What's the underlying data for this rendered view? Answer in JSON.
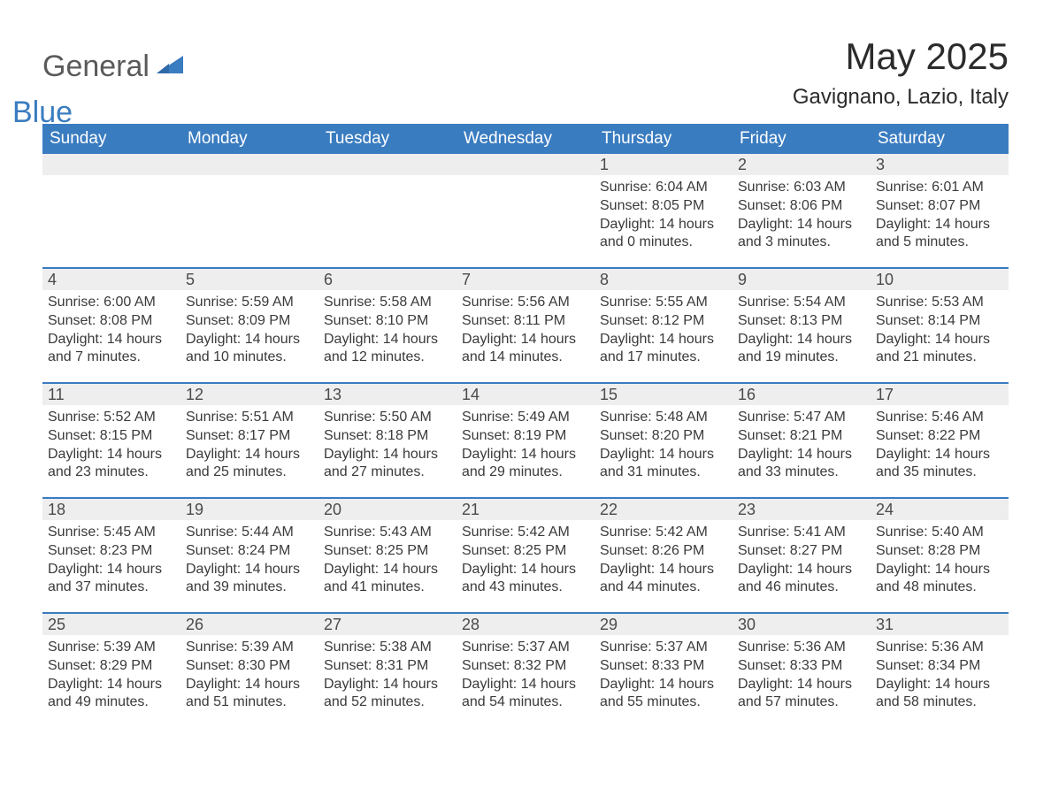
{
  "logo": {
    "text_general": "General",
    "text_blue": "Blue",
    "general_color": "#5a5a5a",
    "blue_color": "#3a7cc0",
    "icon_color": "#3a7cc0"
  },
  "title": "May 2025",
  "location": "Gavignano, Lazio, Italy",
  "colors": {
    "header_bg": "#3a7cc0",
    "header_text": "#ffffff",
    "daynum_bg": "#eeeeee",
    "daynum_text": "#4a4a4a",
    "body_text": "#3a3a3a",
    "week_border": "#3a7cc0",
    "page_bg": "#ffffff"
  },
  "typography": {
    "title_fontsize": 42,
    "location_fontsize": 24,
    "header_fontsize": 19,
    "daynum_fontsize": 18,
    "body_fontsize": 16,
    "logo_fontsize": 34,
    "font_family": "Arial"
  },
  "weekdays": [
    "Sunday",
    "Monday",
    "Tuesday",
    "Wednesday",
    "Thursday",
    "Friday",
    "Saturday"
  ],
  "weeks": [
    [
      null,
      null,
      null,
      null,
      {
        "num": "1",
        "sunrise": "Sunrise: 6:04 AM",
        "sunset": "Sunset: 8:05 PM",
        "daylight1": "Daylight: 14 hours",
        "daylight2": "and 0 minutes."
      },
      {
        "num": "2",
        "sunrise": "Sunrise: 6:03 AM",
        "sunset": "Sunset: 8:06 PM",
        "daylight1": "Daylight: 14 hours",
        "daylight2": "and 3 minutes."
      },
      {
        "num": "3",
        "sunrise": "Sunrise: 6:01 AM",
        "sunset": "Sunset: 8:07 PM",
        "daylight1": "Daylight: 14 hours",
        "daylight2": "and 5 minutes."
      }
    ],
    [
      {
        "num": "4",
        "sunrise": "Sunrise: 6:00 AM",
        "sunset": "Sunset: 8:08 PM",
        "daylight1": "Daylight: 14 hours",
        "daylight2": "and 7 minutes."
      },
      {
        "num": "5",
        "sunrise": "Sunrise: 5:59 AM",
        "sunset": "Sunset: 8:09 PM",
        "daylight1": "Daylight: 14 hours",
        "daylight2": "and 10 minutes."
      },
      {
        "num": "6",
        "sunrise": "Sunrise: 5:58 AM",
        "sunset": "Sunset: 8:10 PM",
        "daylight1": "Daylight: 14 hours",
        "daylight2": "and 12 minutes."
      },
      {
        "num": "7",
        "sunrise": "Sunrise: 5:56 AM",
        "sunset": "Sunset: 8:11 PM",
        "daylight1": "Daylight: 14 hours",
        "daylight2": "and 14 minutes."
      },
      {
        "num": "8",
        "sunrise": "Sunrise: 5:55 AM",
        "sunset": "Sunset: 8:12 PM",
        "daylight1": "Daylight: 14 hours",
        "daylight2": "and 17 minutes."
      },
      {
        "num": "9",
        "sunrise": "Sunrise: 5:54 AM",
        "sunset": "Sunset: 8:13 PM",
        "daylight1": "Daylight: 14 hours",
        "daylight2": "and 19 minutes."
      },
      {
        "num": "10",
        "sunrise": "Sunrise: 5:53 AM",
        "sunset": "Sunset: 8:14 PM",
        "daylight1": "Daylight: 14 hours",
        "daylight2": "and 21 minutes."
      }
    ],
    [
      {
        "num": "11",
        "sunrise": "Sunrise: 5:52 AM",
        "sunset": "Sunset: 8:15 PM",
        "daylight1": "Daylight: 14 hours",
        "daylight2": "and 23 minutes."
      },
      {
        "num": "12",
        "sunrise": "Sunrise: 5:51 AM",
        "sunset": "Sunset: 8:17 PM",
        "daylight1": "Daylight: 14 hours",
        "daylight2": "and 25 minutes."
      },
      {
        "num": "13",
        "sunrise": "Sunrise: 5:50 AM",
        "sunset": "Sunset: 8:18 PM",
        "daylight1": "Daylight: 14 hours",
        "daylight2": "and 27 minutes."
      },
      {
        "num": "14",
        "sunrise": "Sunrise: 5:49 AM",
        "sunset": "Sunset: 8:19 PM",
        "daylight1": "Daylight: 14 hours",
        "daylight2": "and 29 minutes."
      },
      {
        "num": "15",
        "sunrise": "Sunrise: 5:48 AM",
        "sunset": "Sunset: 8:20 PM",
        "daylight1": "Daylight: 14 hours",
        "daylight2": "and 31 minutes."
      },
      {
        "num": "16",
        "sunrise": "Sunrise: 5:47 AM",
        "sunset": "Sunset: 8:21 PM",
        "daylight1": "Daylight: 14 hours",
        "daylight2": "and 33 minutes."
      },
      {
        "num": "17",
        "sunrise": "Sunrise: 5:46 AM",
        "sunset": "Sunset: 8:22 PM",
        "daylight1": "Daylight: 14 hours",
        "daylight2": "and 35 minutes."
      }
    ],
    [
      {
        "num": "18",
        "sunrise": "Sunrise: 5:45 AM",
        "sunset": "Sunset: 8:23 PM",
        "daylight1": "Daylight: 14 hours",
        "daylight2": "and 37 minutes."
      },
      {
        "num": "19",
        "sunrise": "Sunrise: 5:44 AM",
        "sunset": "Sunset: 8:24 PM",
        "daylight1": "Daylight: 14 hours",
        "daylight2": "and 39 minutes."
      },
      {
        "num": "20",
        "sunrise": "Sunrise: 5:43 AM",
        "sunset": "Sunset: 8:25 PM",
        "daylight1": "Daylight: 14 hours",
        "daylight2": "and 41 minutes."
      },
      {
        "num": "21",
        "sunrise": "Sunrise: 5:42 AM",
        "sunset": "Sunset: 8:25 PM",
        "daylight1": "Daylight: 14 hours",
        "daylight2": "and 43 minutes."
      },
      {
        "num": "22",
        "sunrise": "Sunrise: 5:42 AM",
        "sunset": "Sunset: 8:26 PM",
        "daylight1": "Daylight: 14 hours",
        "daylight2": "and 44 minutes."
      },
      {
        "num": "23",
        "sunrise": "Sunrise: 5:41 AM",
        "sunset": "Sunset: 8:27 PM",
        "daylight1": "Daylight: 14 hours",
        "daylight2": "and 46 minutes."
      },
      {
        "num": "24",
        "sunrise": "Sunrise: 5:40 AM",
        "sunset": "Sunset: 8:28 PM",
        "daylight1": "Daylight: 14 hours",
        "daylight2": "and 48 minutes."
      }
    ],
    [
      {
        "num": "25",
        "sunrise": "Sunrise: 5:39 AM",
        "sunset": "Sunset: 8:29 PM",
        "daylight1": "Daylight: 14 hours",
        "daylight2": "and 49 minutes."
      },
      {
        "num": "26",
        "sunrise": "Sunrise: 5:39 AM",
        "sunset": "Sunset: 8:30 PM",
        "daylight1": "Daylight: 14 hours",
        "daylight2": "and 51 minutes."
      },
      {
        "num": "27",
        "sunrise": "Sunrise: 5:38 AM",
        "sunset": "Sunset: 8:31 PM",
        "daylight1": "Daylight: 14 hours",
        "daylight2": "and 52 minutes."
      },
      {
        "num": "28",
        "sunrise": "Sunrise: 5:37 AM",
        "sunset": "Sunset: 8:32 PM",
        "daylight1": "Daylight: 14 hours",
        "daylight2": "and 54 minutes."
      },
      {
        "num": "29",
        "sunrise": "Sunrise: 5:37 AM",
        "sunset": "Sunset: 8:33 PM",
        "daylight1": "Daylight: 14 hours",
        "daylight2": "and 55 minutes."
      },
      {
        "num": "30",
        "sunrise": "Sunrise: 5:36 AM",
        "sunset": "Sunset: 8:33 PM",
        "daylight1": "Daylight: 14 hours",
        "daylight2": "and 57 minutes."
      },
      {
        "num": "31",
        "sunrise": "Sunrise: 5:36 AM",
        "sunset": "Sunset: 8:34 PM",
        "daylight1": "Daylight: 14 hours",
        "daylight2": "and 58 minutes."
      }
    ]
  ]
}
